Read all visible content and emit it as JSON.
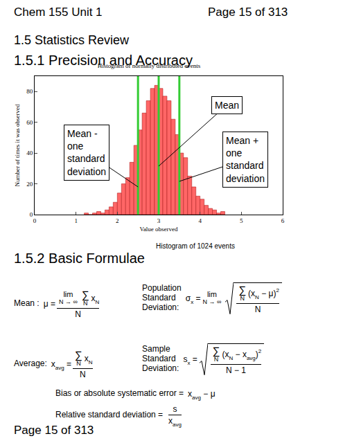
{
  "header": {
    "left": "Chem 155 Unit 1",
    "right": "Page 15 of 313"
  },
  "headings": {
    "section": "1.5 Statistics Review",
    "sub1": "1.5.1 Precision and Accuracy",
    "sub2": "1.5.2 Basic Formulae"
  },
  "chart_data": {
    "type": "histogram",
    "title": "Histogram of normally distributed events",
    "x_label": "Value observed",
    "y_label": "Number of times it was observed",
    "caption": "Histogram of 1024 events",
    "bins": [
      1.2,
      1.3,
      1.4,
      1.5,
      1.6,
      1.7,
      1.8,
      1.9,
      2.0,
      2.1,
      2.2,
      2.3,
      2.4,
      2.5,
      2.6,
      2.7,
      2.8,
      2.9,
      3.0,
      3.1,
      3.2,
      3.3,
      3.4,
      3.5,
      3.6,
      3.7,
      3.8,
      3.9,
      4.0,
      4.1,
      4.2,
      4.3,
      4.4,
      4.5,
      4.6
    ],
    "values": [
      1,
      0,
      1,
      2,
      1,
      3,
      5,
      8,
      14,
      20,
      24,
      34,
      45,
      55,
      66,
      74,
      82,
      84,
      82,
      77,
      74,
      62,
      52,
      40,
      37,
      25,
      18,
      12,
      10,
      6,
      4,
      3,
      1,
      2
    ],
    "color": "#ff6666",
    "xlim": [
      0,
      6
    ],
    "xticks": [
      0,
      1,
      2,
      3,
      4,
      5,
      6
    ],
    "ylim": [
      0,
      90
    ],
    "yticks": [
      0,
      20,
      40,
      60,
      80
    ],
    "grid": false,
    "vlines": [
      {
        "x": 2.5,
        "label": [
          "Mean -",
          "one",
          "standard",
          "deviation"
        ]
      },
      {
        "x": 3.0,
        "label": [
          "Mean"
        ]
      },
      {
        "x": 3.5,
        "label": [
          "Mean +",
          "one",
          "standard",
          "deviation"
        ]
      }
    ]
  },
  "formulas": [
    {
      "label": [
        "Mean :"
      ],
      "expr": [
        "μ =",
        {
          "frac": [
            [
              {
                "op": "lim",
                "under": "N → ∞"
              },
              {
                "op": "∑",
                "under": "N"
              },
              {
                "sub": [
                  "x",
                  "N"
                ]
              }
            ],
            "N"
          ]
        }
      ]
    },
    {
      "label": [
        "Average:"
      ],
      "expr": [
        {
          "sub": [
            "x",
            "avg"
          ]
        },
        " =",
        {
          "frac": [
            [
              {
                "op": "∑",
                "under": "N"
              },
              {
                "sub": [
                  "x",
                  "N"
                ]
              }
            ],
            "N"
          ]
        }
      ]
    },
    {
      "label": [
        "Population",
        "Standard",
        "Deviation:"
      ],
      "expr": [
        {
          "sub": [
            "σ",
            "x"
          ]
        },
        " =",
        {
          "op": "lim",
          "under": "N → ∞"
        },
        {
          "sqrt": {
            "frac": [
              [
                {
                  "op": "∑",
                  "under": "N"
                },
                "(",
                {
                  "sub": [
                    "x",
                    "N"
                  ]
                },
                " − μ",
                {
                  "sup": [
                    ")",
                    "2"
                  ]
                }
              ],
              "N"
            ]
          }
        }
      ]
    },
    {
      "label": [
        "Sample",
        "Standard",
        "Deviation:"
      ],
      "expr": [
        {
          "sub": [
            "s",
            "x"
          ]
        },
        " =",
        {
          "sqrt": {
            "frac": [
              [
                {
                  "op": "∑",
                  "under": "N"
                },
                "(",
                {
                  "sub": [
                    "x",
                    "N"
                  ]
                },
                " − ",
                {
                  "sub": [
                    "x",
                    "avg"
                  ]
                },
                {
                  "sup": [
                    ")",
                    "2"
                  ]
                }
              ],
              "N − 1"
            ]
          }
        }
      ]
    },
    {
      "label": [
        "Bias or absolute systematic error ="
      ],
      "expr": [
        {
          "sub": [
            "x",
            "avg"
          ]
        },
        " − μ"
      ]
    },
    {
      "label": [
        "Relative standard deviation ="
      ],
      "expr": [
        {
          "frac": [
            "s",
            {
              "sub": [
                "x",
                "avg"
              ]
            }
          ]
        }
      ]
    }
  ],
  "footer": "Page 15 of 313"
}
